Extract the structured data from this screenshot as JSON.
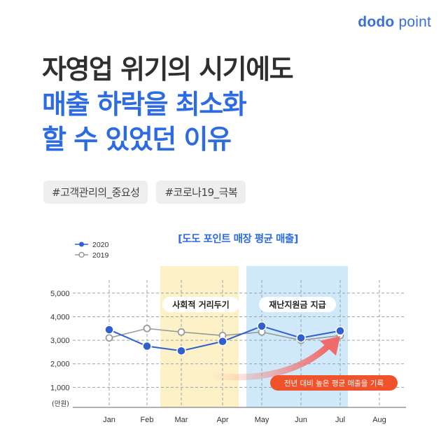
{
  "brand": {
    "name_part1": "dodo",
    "name_part2": " point"
  },
  "headline": {
    "line1": "자영업 위기의 시기에도",
    "line2": "매출 하락을 최소화",
    "line3": "할 수 있었던 이유"
  },
  "tags": [
    "#고객관리의_중요성",
    "#코로나19_극복"
  ],
  "colors": {
    "accent": "#2d6be4",
    "series_2020": "#2f5fd0",
    "series_2019": "#9a9a9a",
    "band_social": "#fdf1c8",
    "band_relief": "#cfe9fb",
    "callout": "#f0532b"
  },
  "chart_data": {
    "type": "line",
    "title": "[도도 포인트 매장 평균 매출]",
    "categories": [
      "Jan",
      "Feb",
      "Mar",
      "Apr",
      "May",
      "Jun",
      "Jul",
      "Aug"
    ],
    "series": [
      {
        "name": "2020",
        "values": [
          3450,
          2750,
          2550,
          2950,
          3600,
          3100,
          3400,
          null
        ]
      },
      {
        "name": "2019",
        "values": [
          3100,
          3500,
          3350,
          3200,
          3350,
          3000,
          3200,
          null
        ]
      }
    ],
    "yticks": [
      "5,000",
      "4,000",
      "3,000",
      "2,000",
      "1,000"
    ],
    "ytick_values": [
      5000,
      4000,
      3000,
      2000,
      1000
    ],
    "ylabel": "(만원)",
    "ylim": [
      0,
      5800
    ],
    "grid": true,
    "legend_position": "top-left",
    "annotations": [
      {
        "label": "사회적 거리두기",
        "from": "Mar",
        "to": "Apr"
      },
      {
        "label": "재난지원금 지급",
        "from": "May",
        "to": "Jul"
      }
    ],
    "callout": "전년 대비 높은 평균 매출을 기록"
  }
}
